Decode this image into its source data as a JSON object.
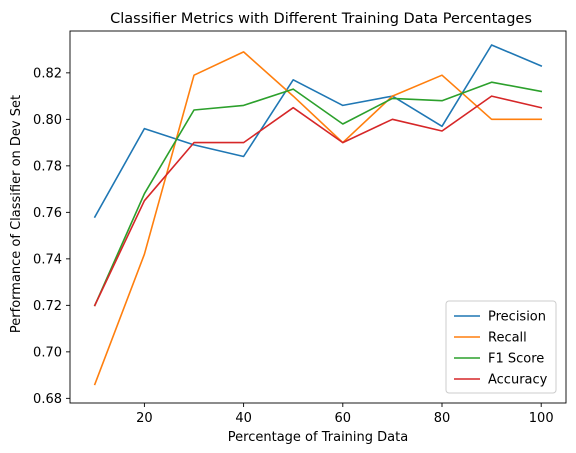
{
  "chart_data": {
    "type": "line",
    "title": "Classifier Metrics with Different Training Data Percentages",
    "xlabel": "Percentage of Training Data",
    "ylabel": "Performance of Classifier on Dev Set",
    "x": [
      10,
      20,
      30,
      40,
      50,
      60,
      70,
      80,
      90,
      100
    ],
    "xlim": [
      5,
      105
    ],
    "ylim": [
      0.678,
      0.838
    ],
    "xticks": [
      20,
      40,
      60,
      80,
      100
    ],
    "xtick_labels": [
      "20",
      "40",
      "60",
      "80",
      "100"
    ],
    "yticks": [
      0.68,
      0.7,
      0.72,
      0.74,
      0.76,
      0.78,
      0.8,
      0.82
    ],
    "ytick_labels": [
      "0.68",
      "0.70",
      "0.72",
      "0.74",
      "0.76",
      "0.78",
      "0.80",
      "0.82"
    ],
    "grid": false,
    "legend_position": "bottom-right",
    "series": [
      {
        "name": "Precision",
        "color": "#1f77b4",
        "values": [
          0.758,
          0.796,
          0.789,
          0.784,
          0.817,
          0.806,
          0.81,
          0.797,
          0.832,
          0.823
        ]
      },
      {
        "name": "Recall",
        "color": "#ff7f0e",
        "values": [
          0.686,
          0.742,
          0.819,
          0.829,
          0.81,
          0.79,
          0.81,
          0.819,
          0.8,
          0.8
        ]
      },
      {
        "name": "F1 Score",
        "color": "#2ca02c",
        "values": [
          0.72,
          0.768,
          0.804,
          0.806,
          0.813,
          0.798,
          0.809,
          0.808,
          0.816,
          0.812
        ]
      },
      {
        "name": "Accuracy",
        "color": "#d62728",
        "values": [
          0.72,
          0.765,
          0.79,
          0.79,
          0.805,
          0.79,
          0.8,
          0.795,
          0.81,
          0.805
        ]
      }
    ]
  }
}
